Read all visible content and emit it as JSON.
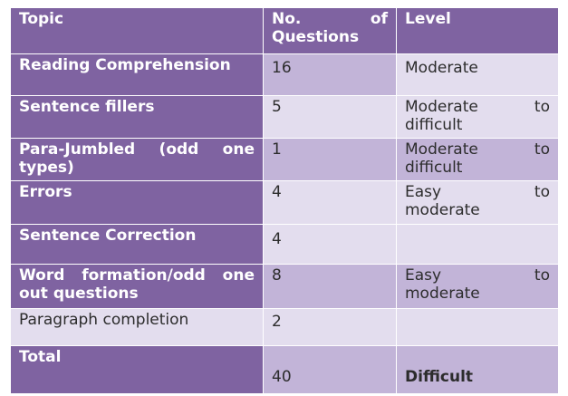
{
  "header": {
    "topic": "Topic",
    "questions_line1": "No. of",
    "questions_line2": "Questions",
    "level": "Level"
  },
  "rows": [
    {
      "topic_l1": "Reading Comprehension",
      "topic_l2": "",
      "count": "16",
      "level_l1": "Moderate",
      "level_l2": ""
    },
    {
      "topic_l1": "Sentence fillers",
      "topic_l2": "",
      "count": "5",
      "level_l1": "Moderate to",
      "level_l2": "difficult"
    },
    {
      "topic_l1": "Para-Jumbled (odd one",
      "topic_l2": "types)",
      "count": "1",
      "level_l1": "Moderate to",
      "level_l2": "difficult"
    },
    {
      "topic_l1": "Errors",
      "topic_l2": "",
      "count": "4",
      "level_l1": "Easy to",
      "level_l2": "moderate"
    },
    {
      "topic_l1": "Sentence Correction",
      "topic_l2": "",
      "count": "4",
      "level_l1": "",
      "level_l2": ""
    },
    {
      "topic_l1": "Word formation/odd one",
      "topic_l2": "out questions",
      "count": "8",
      "level_l1": "Easy to",
      "level_l2": "moderate"
    },
    {
      "topic_l1": "Paragraph completion",
      "topic_l2": "",
      "count": "2",
      "level_l1": "",
      "level_l2": ""
    }
  ],
  "total": {
    "label": "Total",
    "count": "40",
    "level": "Difficult"
  }
}
